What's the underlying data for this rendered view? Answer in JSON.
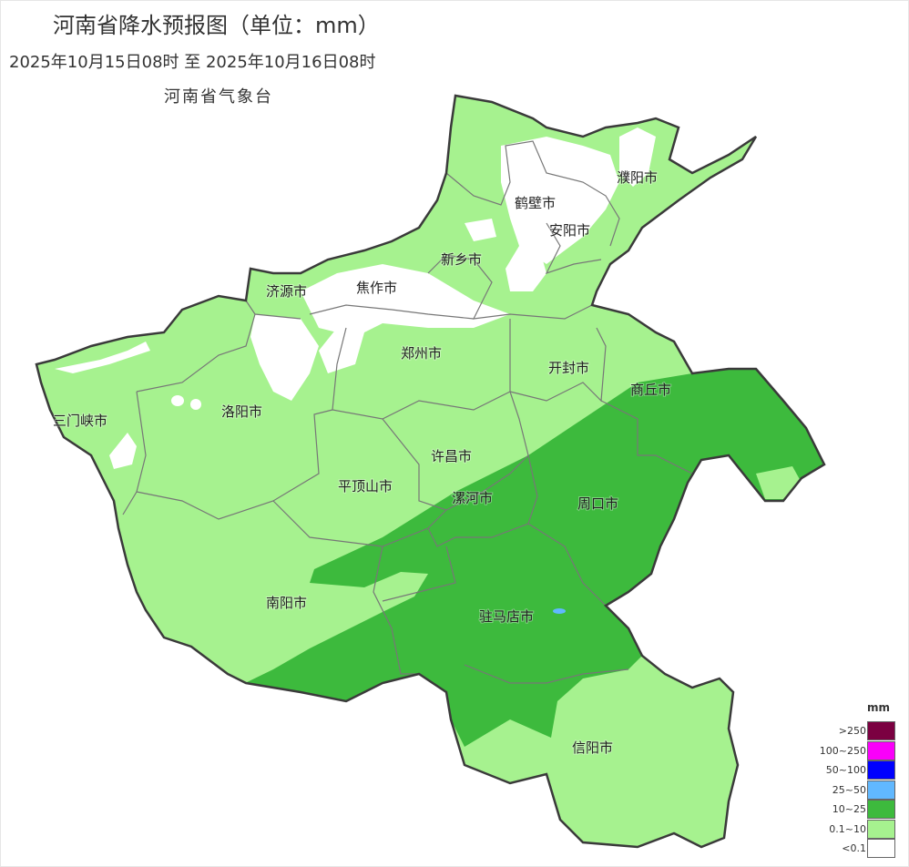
{
  "header": {
    "title": "河南省降水预报图（单位：mm）",
    "period": "2025年10月15日08时  至  2025年10月16日08时",
    "issuer": "河南省气象台"
  },
  "map": {
    "region": "河南省",
    "colors": {
      "no_rain": "#ffffff",
      "light": "#a6f28f",
      "moderate": "#3dba3d",
      "border": "#3a3a3a",
      "inner_border": "#777777"
    },
    "cities": [
      "濮阳市",
      "鹤壁市",
      "安阳市",
      "新乡市",
      "济源市",
      "焦作市",
      "郑州市",
      "开封市",
      "商丘市",
      "三门峡市",
      "洛阳市",
      "许昌市",
      "平顶山市",
      "漯河市",
      "周口市",
      "南阳市",
      "驻马店市",
      "信阳市"
    ]
  },
  "legend": {
    "unit": "mm",
    "items": [
      {
        "label": ">250",
        "color": "#7b0041"
      },
      {
        "label": "100~250",
        "color": "#fa00fa"
      },
      {
        "label": "50~100",
        "color": "#0000fe"
      },
      {
        "label": "25~50",
        "color": "#61b8ff"
      },
      {
        "label": "10~25",
        "color": "#3dba3d"
      },
      {
        "label": "0.1~10",
        "color": "#a6f28f"
      },
      {
        "label": "<0.1",
        "color": "#ffffff"
      }
    ]
  }
}
